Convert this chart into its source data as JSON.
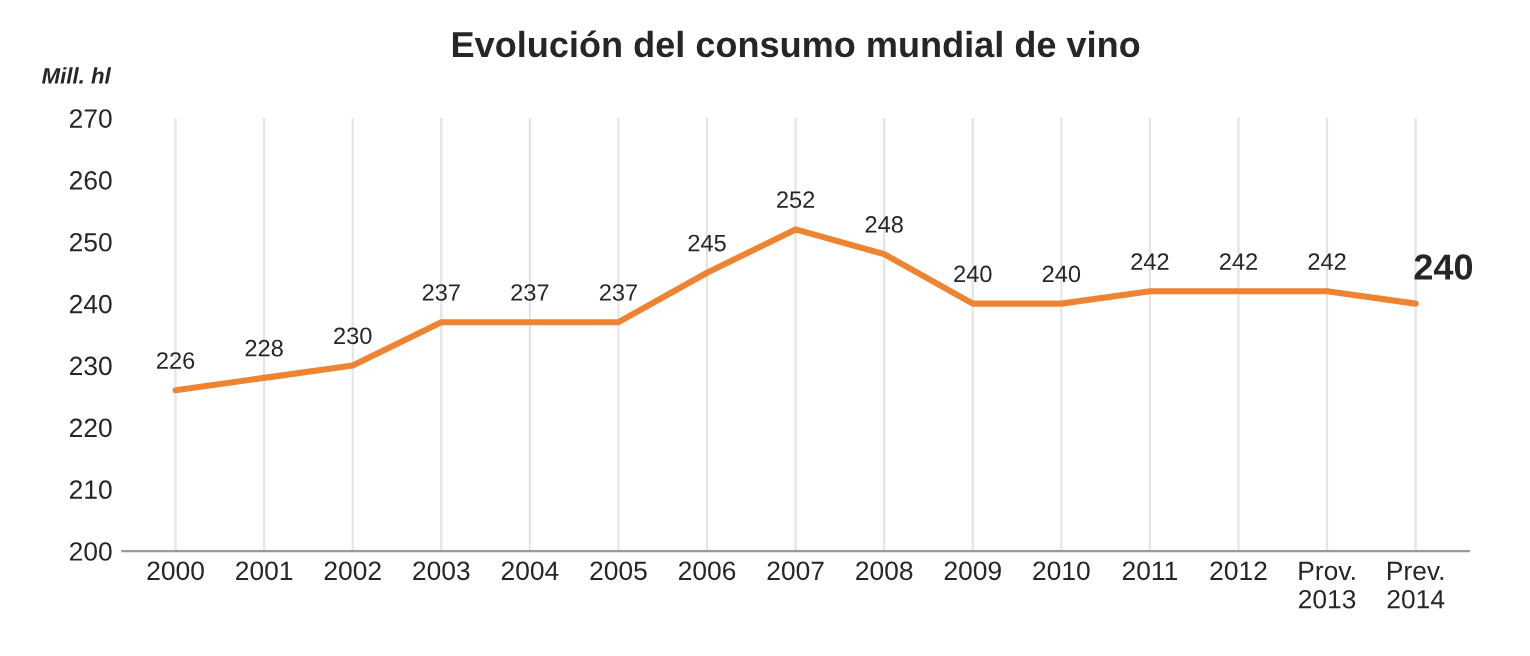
{
  "chart_data": {
    "type": "line",
    "title": "Evolución del consumo mundial de vino",
    "ylabel": "Mill. hl",
    "categories": [
      "2000",
      "2001",
      "2002",
      "2003",
      "2004",
      "2005",
      "2006",
      "2007",
      "2008",
      "2009",
      "2010",
      "2011",
      "2012",
      "Prov.\n2013",
      "Prev.\n2014"
    ],
    "series": [
      {
        "color": "#ee8432",
        "values": [
          226,
          228,
          230,
          237,
          237,
          237,
          245,
          252,
          248,
          240,
          240,
          242,
          242,
          242,
          240
        ]
      }
    ],
    "ylim": [
      200,
      270
    ],
    "yticks": [
      200,
      210,
      220,
      230,
      240,
      250,
      260,
      270
    ],
    "grid": "x",
    "data_labels": true,
    "marker": "none",
    "line_style": "solid"
  }
}
